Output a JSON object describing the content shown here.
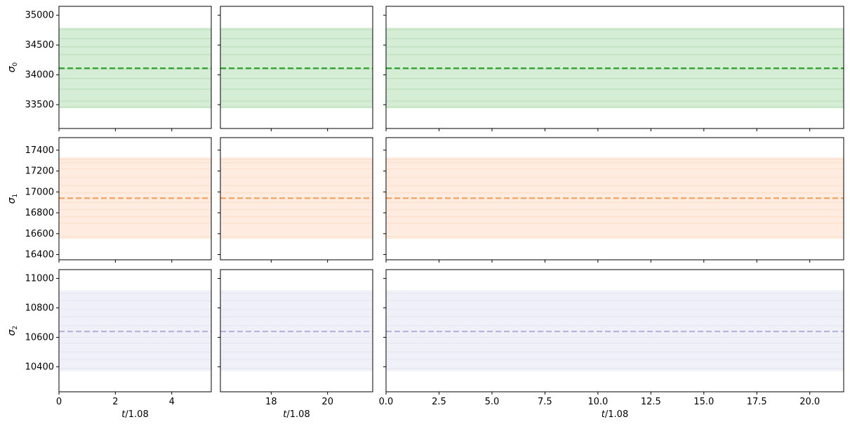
{
  "chart_data": {
    "type": "line",
    "grid": false,
    "colors": {
      "sigma0": {
        "line": "#2ca02c",
        "band": "#2ca02c"
      },
      "sigma1": {
        "line": "#f4a261",
        "band": "#f4a261"
      },
      "sigma2": {
        "line": "#b3b3dd",
        "band": "#b3b3dd"
      }
    },
    "rows": [
      {
        "ylabel_base": "σ",
        "ylabel_sub": "0",
        "color_key": "sigma0",
        "ylim": [
          33100,
          35150
        ],
        "yticks": [
          33500,
          34000,
          34500,
          35000
        ],
        "mean": 34110,
        "band": [
          33440,
          34790
        ],
        "bg_lines": [
          33460,
          33560,
          33760,
          33940,
          34100,
          34340,
          34470,
          34610,
          34760
        ]
      },
      {
        "ylabel_base": "σ",
        "ylabel_sub": "1",
        "color_key": "sigma1",
        "ylim": [
          16350,
          17520
        ],
        "yticks": [
          16400,
          16600,
          16800,
          17000,
          17200,
          17400
        ],
        "mean": 16940,
        "band": [
          16550,
          17330
        ],
        "bg_lines": [
          16570,
          16700,
          16760,
          16830,
          16900,
          16990,
          17060,
          17140,
          17220,
          17280,
          17310
        ]
      },
      {
        "ylabel_base": "σ",
        "ylabel_sub": "2",
        "color_key": "sigma2",
        "ylim": [
          10230,
          11060
        ],
        "yticks": [
          10400,
          10600,
          10800,
          11000
        ],
        "mean": 10640,
        "band": [
          10370,
          10920
        ],
        "bg_lines": [
          10390,
          10450,
          10500,
          10560,
          10600,
          10680,
          10740,
          10790,
          10850,
          10900
        ]
      }
    ],
    "columns": [
      {
        "xlabel": "t/1.08",
        "xlim": [
          0,
          5.4
        ],
        "xticks": [
          0,
          2,
          4
        ],
        "xticklabels": [
          "0",
          "2",
          "4"
        ]
      },
      {
        "xlabel": "t/1.08",
        "xlim": [
          16.2,
          21.6
        ],
        "xticks": [
          18,
          20
        ],
        "xticklabels": [
          "18",
          "20"
        ]
      },
      {
        "xlabel": "t/1.08",
        "xlim": [
          0,
          21.6
        ],
        "xticks": [
          0,
          2.5,
          5,
          7.5,
          10,
          12.5,
          15,
          17.5,
          20
        ],
        "xticklabels": [
          "0.0",
          "2.5",
          "5.0",
          "7.5",
          "10.0",
          "12.5",
          "15.0",
          "17.5",
          "20.0"
        ]
      }
    ]
  }
}
